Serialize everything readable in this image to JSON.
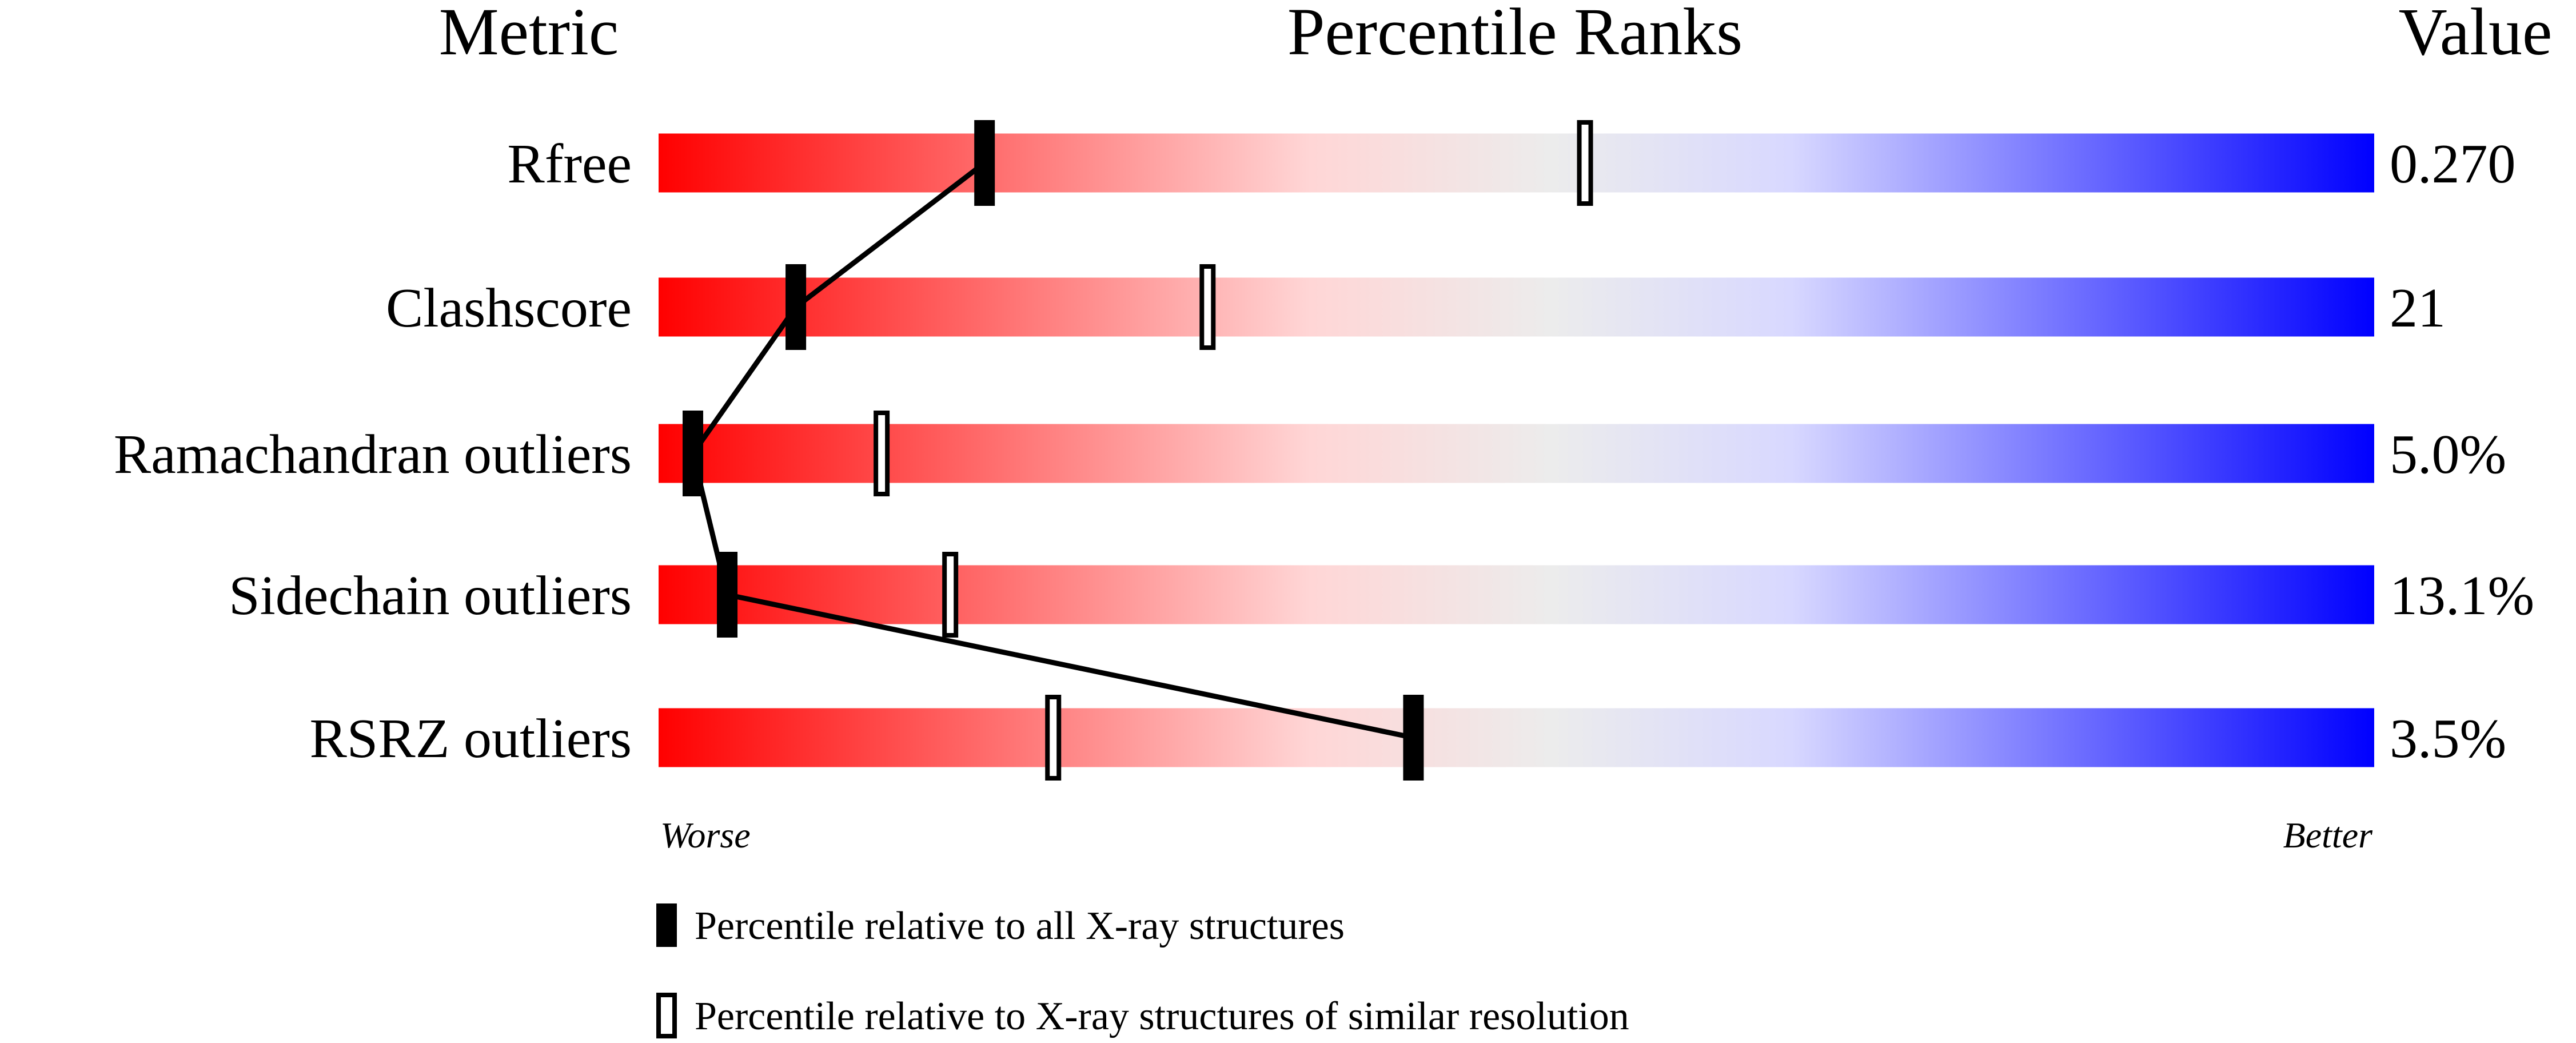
{
  "chart_data": {
    "type": "bar",
    "headers": {
      "metric": "Metric",
      "percentile": "Percentile Ranks",
      "value": "Value"
    },
    "metrics": [
      {
        "name": "Rfree",
        "value": "0.270",
        "percentile_all": 19,
        "percentile_similar": 54
      },
      {
        "name": "Clashscore",
        "value": "21",
        "percentile_all": 8,
        "percentile_similar": 32
      },
      {
        "name": "Ramachandran outliers",
        "value": "5.0%",
        "percentile_all": 2,
        "percentile_similar": 13
      },
      {
        "name": "Sidechain outliers",
        "value": "13.1%",
        "percentile_all": 4,
        "percentile_similar": 17
      },
      {
        "name": "RSRZ outliers",
        "value": "3.5%",
        "percentile_all": 44,
        "percentile_similar": 23
      }
    ],
    "xlim": [
      0,
      100
    ],
    "axis_labels": {
      "left": "Worse",
      "right": "Better"
    },
    "legend": {
      "all": "Percentile relative to all X-ray structures",
      "similar": "Percentile relative to X-ray structures of similar resolution"
    },
    "colors": {
      "worse": "#ff0000",
      "middle": "#eeeeee",
      "better": "#0000ff",
      "marker": "#000000"
    }
  }
}
